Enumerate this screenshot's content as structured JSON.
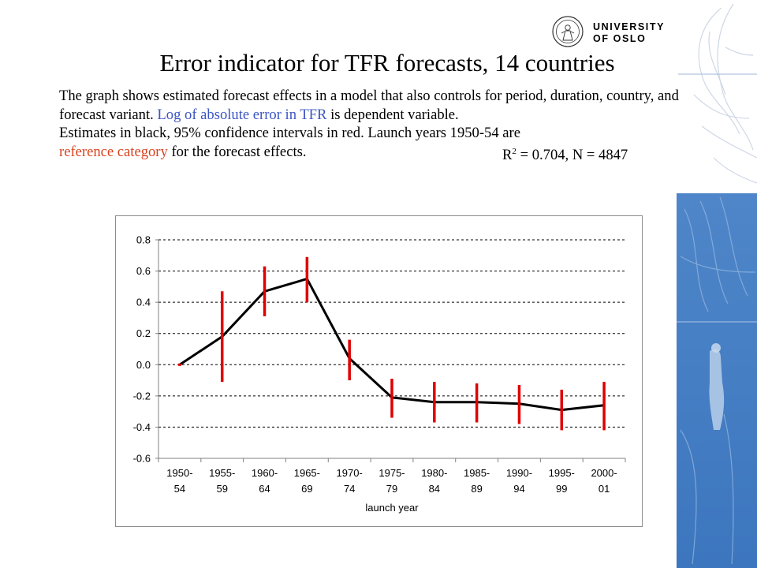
{
  "logo": {
    "line1": "UNIVERSITY",
    "line2": "OF OSLO"
  },
  "title": "Error indicator for TFR forecasts, 14 countries",
  "description": {
    "p1_a": "The graph shows estimated forecast effects in a model that also controls for period, duration, country, and forecast variant.",
    "p1_blue": "Log of absolute error in TFR",
    "p1_b": "is dependent variable.",
    "p2_a": "Estimates in black, 95% confidence intervals in red. Launch years 1950-54 are",
    "p2_red": "reference category",
    "p2_b": "for the forecast effects.",
    "r2_label": "R",
    "r2_sup": "2",
    "r2_rest": "= 0.704, N = 4847"
  },
  "colors": {
    "estimate": "#000000",
    "confidence": "#e00000",
    "highlight_blue": "#3b55c4",
    "highlight_red": "#d9421f"
  },
  "chart_data": {
    "type": "line",
    "xlabel": "launch year",
    "ylabel": "",
    "ylim": [
      -0.6,
      0.8
    ],
    "yticks": [
      "0.8",
      "0.6",
      "0.4",
      "0.2",
      "0.0",
      "-0.2",
      "-0.4",
      "-0.6"
    ],
    "ytick_values": [
      0.8,
      0.6,
      0.4,
      0.2,
      0.0,
      -0.2,
      -0.4,
      -0.6
    ],
    "grid": "dashed horizontal",
    "categories": [
      [
        "1950-",
        "54"
      ],
      [
        "1955-",
        "59"
      ],
      [
        "1960-",
        "64"
      ],
      [
        "1965-",
        "69"
      ],
      [
        "1970-",
        "74"
      ],
      [
        "1975-",
        "79"
      ],
      [
        "1980-",
        "84"
      ],
      [
        "1985-",
        "89"
      ],
      [
        "1990-",
        "94"
      ],
      [
        "1995-",
        "99"
      ],
      [
        "2000-",
        "01"
      ]
    ],
    "estimates": [
      0.0,
      0.18,
      0.47,
      0.55,
      0.04,
      -0.21,
      -0.24,
      -0.24,
      -0.25,
      -0.29,
      -0.26
    ],
    "ci_low": [
      0.0,
      -0.11,
      0.31,
      0.4,
      -0.1,
      -0.34,
      -0.37,
      -0.37,
      -0.38,
      -0.42,
      -0.42
    ],
    "ci_high": [
      0.0,
      0.47,
      0.63,
      0.69,
      0.16,
      -0.09,
      -0.11,
      -0.12,
      -0.13,
      -0.16,
      -0.11
    ]
  }
}
